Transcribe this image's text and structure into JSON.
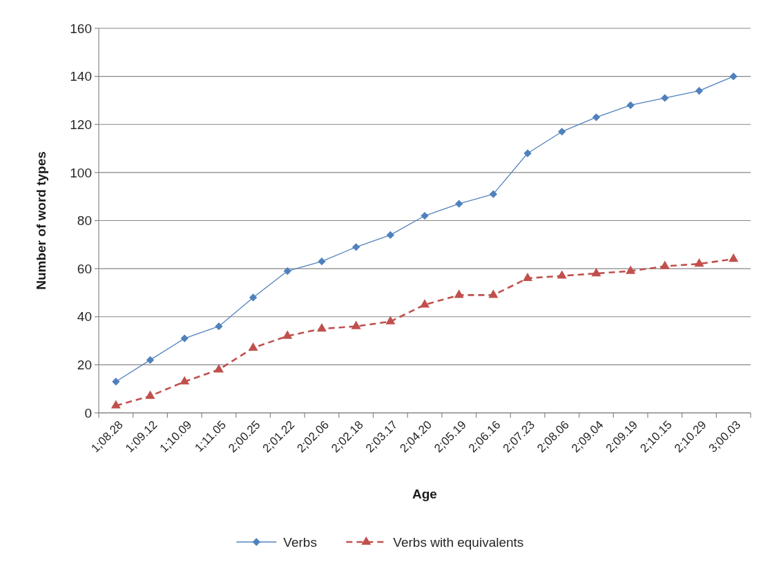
{
  "chart_data": {
    "type": "line",
    "xlabel": "Age",
    "ylabel": "Number of word types",
    "categories": [
      "1;08.28",
      "1;09.12",
      "1;10.09",
      "1;11.05",
      "2;00.25",
      "2;01.22",
      "2;02.06",
      "2;02.18",
      "2;03.17",
      "2;04.20",
      "2;05.19",
      "2;06.16",
      "2;07.23",
      "2;08.06",
      "2;09.04",
      "2;09.19",
      "2;10.15",
      "2;10.29",
      "3;00.03"
    ],
    "series": [
      {
        "name": "Verbs",
        "color": "#4f81bd",
        "marker": "diamond",
        "line_style": "solid",
        "values": [
          13,
          22,
          31,
          36,
          48,
          59,
          63,
          69,
          74,
          82,
          87,
          91,
          108,
          117,
          123,
          128,
          131,
          134,
          140
        ]
      },
      {
        "name": "Verbs with equivalents",
        "color": "#c0504d",
        "marker": "triangle",
        "line_style": "dashed",
        "values": [
          3,
          7,
          13,
          18,
          27,
          32,
          35,
          36,
          38,
          45,
          49,
          49,
          56,
          57,
          58,
          59,
          61,
          62,
          64
        ]
      }
    ],
    "ylim": [
      0,
      160
    ],
    "yticks": [
      0,
      20,
      40,
      60,
      80,
      100,
      120,
      140,
      160
    ],
    "grid": "y",
    "legend": "bottom"
  }
}
